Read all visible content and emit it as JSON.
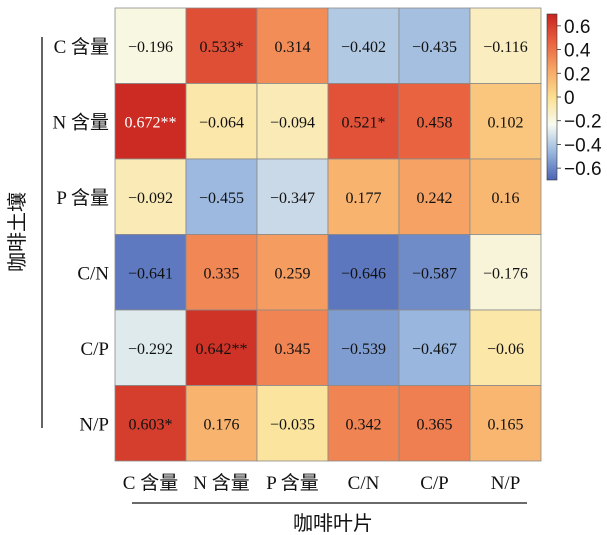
{
  "chart_data": {
    "type": "heatmap",
    "row_labels": [
      "C 含量",
      "N 含量",
      "P 含量",
      "C/N",
      "C/P",
      "N/P"
    ],
    "col_labels": [
      "C 含量",
      "N 含量",
      "P 含量",
      "C/N",
      "C/P",
      "N/P"
    ],
    "values": [
      [
        -0.196,
        0.533,
        0.314,
        -0.402,
        -0.435,
        -0.116
      ],
      [
        0.672,
        -0.064,
        -0.094,
        0.521,
        0.458,
        0.102
      ],
      [
        -0.092,
        -0.455,
        -0.347,
        0.177,
        0.242,
        0.16
      ],
      [
        -0.641,
        0.335,
        0.259,
        -0.646,
        -0.587,
        -0.176
      ],
      [
        -0.292,
        0.642,
        0.345,
        -0.539,
        -0.467,
        -0.06
      ],
      [
        0.603,
        0.176,
        -0.035,
        0.342,
        0.365,
        0.165
      ]
    ],
    "cell_labels": [
      [
        "−0.196",
        "0.533*",
        "0.314",
        "−0.402",
        "−0.435",
        "−0.116"
      ],
      [
        "0.672**",
        "−0.064",
        "−0.094",
        "0.521*",
        "0.458",
        "0.102"
      ],
      [
        "−0.092",
        "−0.455",
        "−0.347",
        "0.177",
        "0.242",
        "0.16"
      ],
      [
        "−0.641",
        "0.335",
        "0.259",
        "−0.646",
        "−0.587",
        "−0.176"
      ],
      [
        "−0.292",
        "0.642**",
        "0.345",
        "−0.539",
        "−0.467",
        "−0.06"
      ],
      [
        "0.603*",
        "0.176",
        "−0.035",
        "0.342",
        "0.365",
        "0.165"
      ]
    ],
    "xlabel": "咖啡叶片",
    "ylabel": "咖啡土壤",
    "colorbar": {
      "range": [
        -0.7,
        0.7
      ],
      "ticks": [
        0.6,
        0.4,
        0.2,
        0,
        -0.2,
        -0.4,
        -0.6
      ],
      "tick_labels": [
        "0.6",
        "0.4",
        "0.2",
        "0",
        "−0.2",
        "−0.4",
        "−0.6"
      ],
      "colors": [
        "#4a64b4",
        "#98b6de",
        "#f7fbf1",
        "#fce08f",
        "#f7a565",
        "#e9603f",
        "#c7241f"
      ]
    }
  }
}
